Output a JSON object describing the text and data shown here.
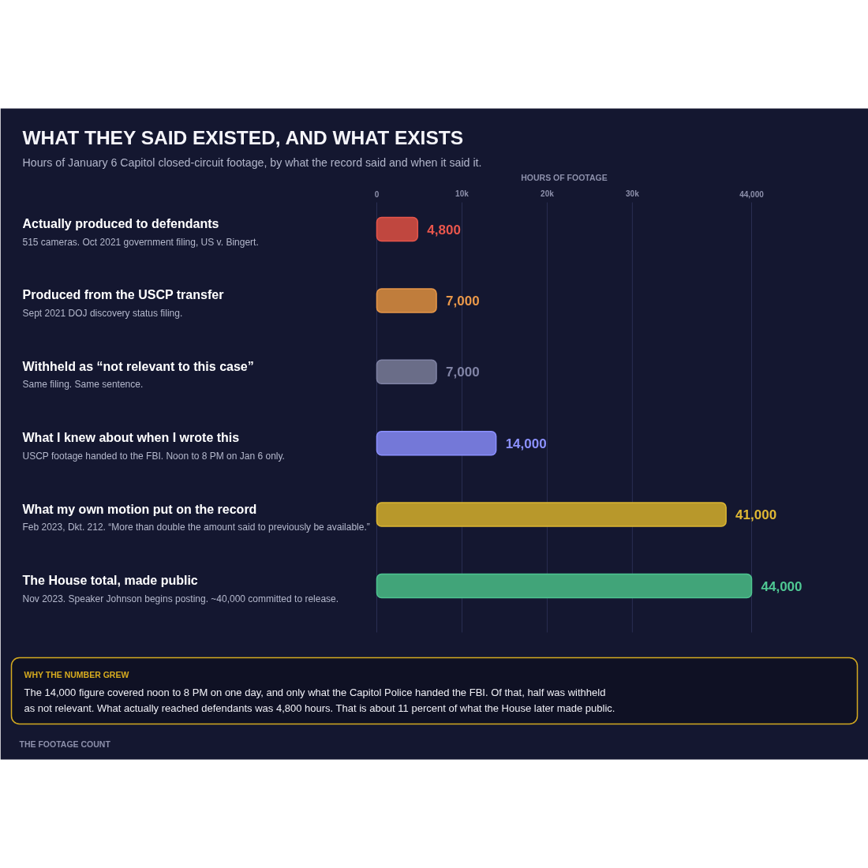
{
  "chart_data": {
    "type": "bar",
    "orientation": "horizontal",
    "title": "WHAT THEY SAID EXISTED, AND WHAT EXISTS",
    "subtitle": "Hours of January 6 Capitol closed-circuit footage, by what the record said and when it said it.",
    "xlabel": "HOURS OF FOOTAGE",
    "categories": [
      "Actually produced to defendants\n515 cameras. Oct 2021 government filing, US v. Bingert.",
      "Produced from the USCP transfer\nSept 2021 DOJ discovery status filing.",
      "Withheld as “not relevant to this case”\nSame filing. Same sentence.",
      "What I knew about when I wrote this\nUSCP footage handed to the FBI. Noon to 8 PM on Jan 6 only.",
      "What my own motion put on the record\nFeb 2023, Dkt. 212. “More than double the amount said to previously be available.”",
      "The House total, made public\nNov 2023. Speaker Johnson begins posting. ~40,000 committed to release."
    ],
    "values": [
      4800,
      7000,
      7000,
      14000,
      41000,
      44000
    ],
    "colors": [
      "#c0473f",
      "#c07d3c",
      "#6a6d88",
      "#7478d8",
      "#b8982b",
      "#41a479"
    ],
    "value_labels": [
      "4,800",
      "7,000",
      "7,000",
      "14,000",
      "41,000",
      "44,000"
    ],
    "xlim": [
      0,
      44000
    ],
    "xticks": [
      0,
      {
        "value": 10000,
        "label": "10k"
      },
      {
        "value": 20000,
        "label": "20k"
      },
      {
        "value": 30000,
        "label": "30k"
      },
      {
        "value": 44000,
        "label": "44,000"
      }
    ],
    "grid": "x",
    "annotations": [
      "WHY THE NUMBER GREW",
      "The 14,000 figure covered noon to 8 PM on one day, and only what the Capitol Police handed the FBI. Of that, half was withheld as not relevant. What actually reached defendants was 4,800 hours. That is about 11 percent of what the House later made public.",
      "THE FOOTAGE COUNT"
    ]
  }
}
